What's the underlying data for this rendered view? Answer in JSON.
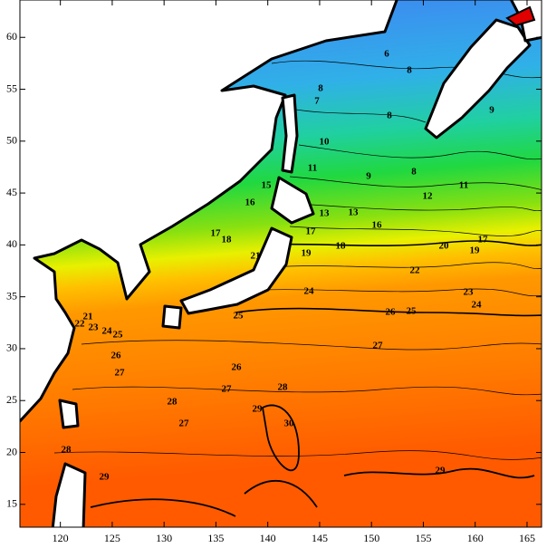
{
  "map": {
    "type": "contour",
    "xlim": [
      116.1,
      166.4
    ],
    "ylim": [
      12.8,
      63.6
    ],
    "xticks": [
      120,
      125,
      130,
      135,
      140,
      145,
      150,
      155,
      160,
      165
    ],
    "yticks": [
      15,
      20,
      25,
      30,
      35,
      40,
      45,
      50,
      55,
      60
    ],
    "contour_labels": [
      6,
      8,
      7,
      8,
      8,
      9,
      10,
      11,
      8,
      9,
      11,
      12,
      13,
      13,
      15,
      16,
      16,
      17,
      17,
      18,
      18,
      17,
      19,
      20,
      21,
      19,
      22,
      23,
      24,
      24,
      25,
      26,
      27,
      21,
      22,
      23,
      24,
      25,
      26,
      27,
      26,
      27,
      28,
      28,
      29,
      30,
      27,
      28,
      29,
      29,
      25
    ]
  }
}
